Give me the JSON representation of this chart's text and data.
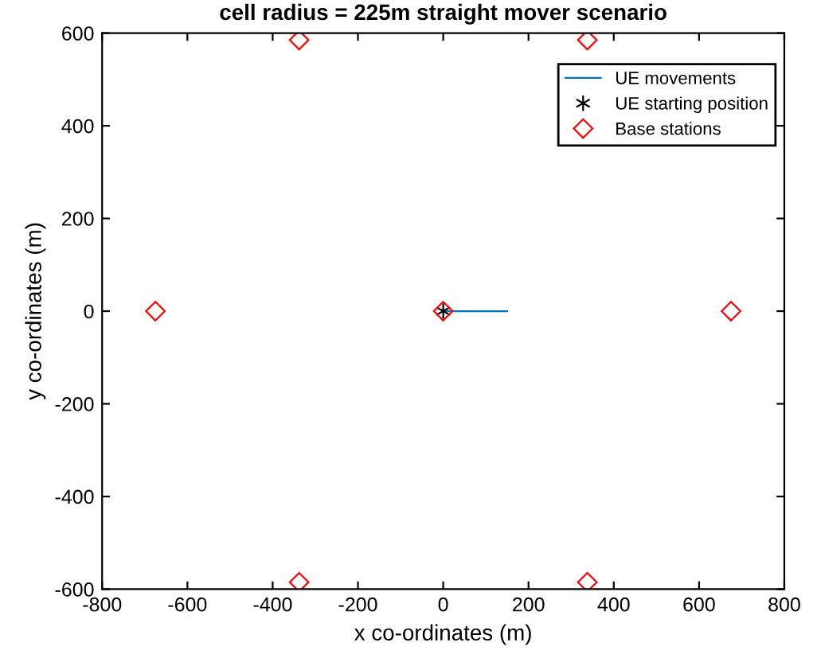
{
  "chart_data": {
    "type": "scatter",
    "title": "cell radius = 225m straight mover scenario",
    "xlabel": "x co-ordinates (m)",
    "ylabel": "y co-ordinates (m)",
    "xlim": [
      -800,
      800
    ],
    "ylim": [
      -600,
      600
    ],
    "xticks": [
      -800,
      -600,
      -400,
      -200,
      0,
      200,
      400,
      600,
      800
    ],
    "yticks": [
      -600,
      -400,
      -200,
      0,
      200,
      400,
      600
    ],
    "grid": false,
    "legend": "top right",
    "series": [
      {
        "name": "UE movements",
        "type": "line",
        "color": "#0072bd",
        "marker": "none",
        "x": [
          0,
          150
        ],
        "values": [
          0,
          0
        ]
      },
      {
        "name": "UE starting position",
        "type": "scatter",
        "color": "#000000",
        "marker": "cross",
        "x": [
          0
        ],
        "values": [
          0
        ]
      },
      {
        "name": "Base stations",
        "color": "#ff0000",
        "marker": "diamond",
        "x": [
          0,
          -338,
          338,
          -675,
          675,
          -338,
          338
        ],
        "values": [
          0,
          585,
          585,
          0,
          0,
          -585,
          -585
        ]
      }
    ]
  }
}
